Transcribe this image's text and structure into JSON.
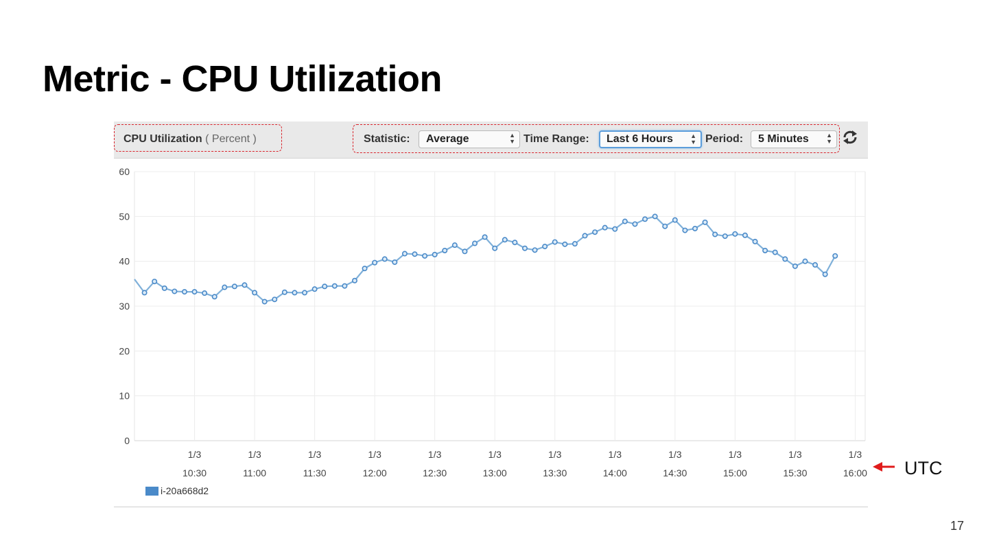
{
  "slide": {
    "title": "Metric - CPU Utilization",
    "page_number": "17",
    "utc_annotation": "UTC",
    "arrow_color": "#e01b1b"
  },
  "toolbar": {
    "metric_name": "CPU Utilization",
    "metric_unit": "( Percent )",
    "statistic_label": "Statistic:",
    "statistic_value": "Average",
    "time_range_label": "Time Range:",
    "time_range_value": "Last 6 Hours",
    "period_label": "Period:",
    "period_value": "5 Minutes",
    "refresh_icon": "refresh-icon"
  },
  "legend": {
    "series_name": "i-20a668d2",
    "color": "#4a8ac9"
  },
  "chart_data": {
    "type": "line",
    "title": "",
    "xlabel": "",
    "ylabel": "",
    "ylim": [
      0,
      60
    ],
    "yticks": [
      "0",
      "10",
      "20",
      "30",
      "40",
      "50",
      "60"
    ],
    "xlim": [
      "10:00",
      "16:05"
    ],
    "xticks": [
      {
        "date": "1/3",
        "time": "10:30"
      },
      {
        "date": "1/3",
        "time": "11:00"
      },
      {
        "date": "1/3",
        "time": "11:30"
      },
      {
        "date": "1/3",
        "time": "12:00"
      },
      {
        "date": "1/3",
        "time": "12:30"
      },
      {
        "date": "1/3",
        "time": "13:00"
      },
      {
        "date": "1/3",
        "time": "13:30"
      },
      {
        "date": "1/3",
        "time": "14:00"
      },
      {
        "date": "1/3",
        "time": "14:30"
      },
      {
        "date": "1/3",
        "time": "15:00"
      },
      {
        "date": "1/3",
        "time": "15:30"
      },
      {
        "date": "1/3",
        "time": "16:00"
      }
    ],
    "grid": true,
    "legend_position": "bottom-left",
    "line_color": "#7fb0d9",
    "marker_color": "#4a8ac9",
    "series": [
      {
        "name": "i-20a668d2",
        "x": [
          "10:00",
          "10:05",
          "10:10",
          "10:15",
          "10:20",
          "10:25",
          "10:30",
          "10:35",
          "10:40",
          "10:45",
          "10:50",
          "10:55",
          "11:00",
          "11:05",
          "11:10",
          "11:15",
          "11:20",
          "11:25",
          "11:30",
          "11:35",
          "11:40",
          "11:45",
          "11:50",
          "11:55",
          "12:00",
          "12:05",
          "12:10",
          "12:15",
          "12:20",
          "12:25",
          "12:30",
          "12:35",
          "12:40",
          "12:45",
          "12:50",
          "12:55",
          "13:00",
          "13:05",
          "13:10",
          "13:15",
          "13:20",
          "13:25",
          "13:30",
          "13:35",
          "13:40",
          "13:45",
          "13:50",
          "13:55",
          "14:00",
          "14:05",
          "14:10",
          "14:15",
          "14:20",
          "14:25",
          "14:30",
          "14:35",
          "14:40",
          "14:45",
          "14:50",
          "14:55",
          "15:00",
          "15:05",
          "15:10",
          "15:15",
          "15:20",
          "15:25",
          "15:30",
          "15:35",
          "15:40",
          "15:45",
          "15:50",
          "15:55"
        ],
        "values": [
          36.0,
          33.0,
          35.5,
          34.0,
          33.3,
          33.2,
          33.2,
          32.9,
          32.1,
          34.2,
          34.4,
          34.7,
          33.0,
          31.0,
          31.5,
          33.1,
          33.0,
          33.0,
          33.8,
          34.4,
          34.5,
          34.5,
          35.7,
          38.4,
          39.7,
          40.5,
          39.8,
          41.7,
          41.6,
          41.2,
          41.5,
          42.4,
          43.6,
          42.2,
          44.0,
          45.4,
          42.9,
          44.8,
          44.2,
          42.9,
          42.5,
          43.3,
          44.3,
          43.8,
          43.9,
          45.7,
          46.5,
          47.5,
          47.2,
          48.9,
          48.3,
          49.4,
          50.0,
          47.8,
          49.2,
          46.9,
          47.3,
          48.7,
          46.0,
          45.6,
          46.1,
          45.8,
          44.4,
          42.4,
          42.0,
          40.5,
          38.9,
          40.0,
          39.2,
          37.1,
          41.2,
          null
        ]
      }
    ]
  }
}
